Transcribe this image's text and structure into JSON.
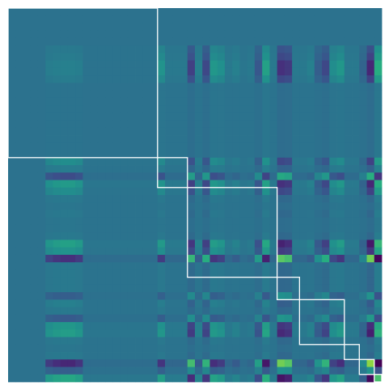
{
  "chart_data": {
    "type": "heatmap",
    "title": "",
    "xlabel": "",
    "ylabel": "",
    "n": 50,
    "colormap": "viridis",
    "value_range": [
      -1,
      1
    ],
    "block_boundaries": [
      0,
      20,
      24,
      36,
      39,
      45,
      47,
      49,
      50
    ],
    "profiles": {
      "col_loading": [
        0,
        0,
        0,
        0,
        0,
        0.45,
        0.55,
        0.6,
        0.6,
        0.5,
        0.05,
        0.05,
        0.05,
        0.05,
        0.05,
        0.05,
        0.05,
        0.05,
        0.05,
        0.05,
        0.5,
        0.1,
        0.1,
        0.1,
        -0.7,
        0.2,
        -0.6,
        0.55,
        0.45,
        0.1,
        0.2,
        0.05,
        0.1,
        -0.4,
        0.7,
        0.1,
        -0.9,
        -0.8,
        0.1,
        0.1,
        0.2,
        -0.3,
        -0.6,
        0.4,
        0.55,
        0.1,
        0.1,
        -0.2,
        -1.0,
        0.9
      ],
      "row_loading": [
        0,
        0,
        0,
        0,
        0,
        0.3,
        0.4,
        0.6,
        0.6,
        0.4,
        0.05,
        0.05,
        0.05,
        0.05,
        0.05,
        0.05,
        0.05,
        0.05,
        0.05,
        0.05,
        0.4,
        0.15,
        -0.55,
        0.6,
        0.4,
        0.1,
        0.05,
        0.1,
        0.05,
        0.05,
        0.1,
        0.7,
        0.5,
        -0.9,
        0.1,
        0.1,
        0.1,
        0.1,
        -0.3,
        0.2,
        0.1,
        -0.35,
        0.55,
        0.65,
        0.1,
        0.05,
        0.1,
        -1.0,
        -0.3,
        0.8
      ]
    }
  }
}
